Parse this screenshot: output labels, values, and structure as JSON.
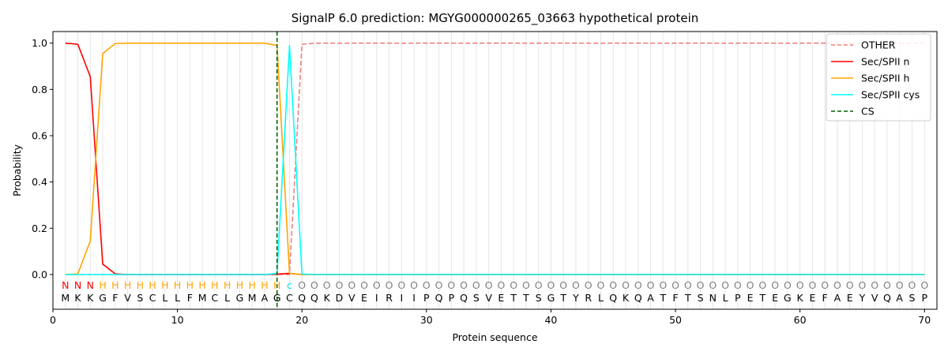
{
  "chart_data": {
    "type": "line",
    "title": "SignalP 6.0 prediction: MGYG000000265_03663 hypothetical protein",
    "xlabel": "Protein sequence",
    "ylabel": "Probability",
    "xlim": [
      0,
      71
    ],
    "ylim": [
      -0.15,
      1.05
    ],
    "x_ticks": [
      0,
      10,
      20,
      30,
      40,
      50,
      60,
      70
    ],
    "y_ticks": [
      0.0,
      0.2,
      0.4,
      0.6,
      0.8,
      1.0
    ],
    "x_tick_labels": [
      "0",
      "10",
      "20",
      "30",
      "40",
      "50",
      "60",
      "70"
    ],
    "y_tick_labels": [
      "0.0",
      "0.2",
      "0.4",
      "0.6",
      "0.8",
      "1.0"
    ],
    "grid": "vertical lines at each residue",
    "legend_position": "top-right",
    "sequence": [
      "M",
      "K",
      "K",
      "G",
      "F",
      "V",
      "S",
      "C",
      "L",
      "L",
      "F",
      "M",
      "C",
      "L",
      "G",
      "M",
      "A",
      "G",
      "C",
      "Q",
      "Q",
      "K",
      "D",
      "V",
      "E",
      "I",
      "R",
      "I",
      "I",
      "P",
      "Q",
      "P",
      "Q",
      "S",
      "V",
      "E",
      "T",
      "T",
      "S",
      "G",
      "T",
      "Y",
      "R",
      "L",
      "Q",
      "K",
      "Q",
      "A",
      "T",
      "F",
      "T",
      "S",
      "N",
      "L",
      "P",
      "E",
      "T",
      "E",
      "G",
      "K",
      "E",
      "F",
      "A",
      "E",
      "Y",
      "V",
      "Q",
      "A",
      "S",
      "P"
    ],
    "annotation": [
      "N",
      "N",
      "N",
      "H",
      "H",
      "H",
      "H",
      "H",
      "H",
      "H",
      "H",
      "H",
      "H",
      "H",
      "H",
      "H",
      "H",
      "H",
      "c",
      "O",
      "O",
      "O",
      "O",
      "O",
      "O",
      "O",
      "O",
      "O",
      "O",
      "O",
      "O",
      "O",
      "O",
      "O",
      "O",
      "O",
      "O",
      "O",
      "O",
      "O",
      "O",
      "O",
      "O",
      "O",
      "O",
      "O",
      "O",
      "O",
      "O",
      "O",
      "O",
      "O",
      "O",
      "O",
      "O",
      "O",
      "O",
      "O",
      "O",
      "O",
      "O",
      "O",
      "O",
      "O",
      "O",
      "O",
      "O",
      "O",
      "O",
      "O"
    ],
    "annotation_colors": {
      "N": "#ff0000",
      "H": "#ffa500",
      "c": "#00e5e5",
      "O": "#808080"
    },
    "series": [
      {
        "name": "OTHER",
        "color": "#f08080",
        "style": "dashed",
        "values": [
          0.0,
          0.0,
          0.0,
          0.0,
          0.0,
          0.0,
          0.0,
          0.0,
          0.0,
          0.0,
          0.0,
          0.0,
          0.0,
          0.0,
          0.0,
          0.0,
          0.0,
          0.0,
          0.0,
          0.995,
          1.0,
          1.0,
          1.0,
          1.0,
          1.0,
          1.0,
          1.0,
          1.0,
          1.0,
          1.0,
          1.0,
          1.0,
          1.0,
          1.0,
          1.0,
          1.0,
          1.0,
          1.0,
          1.0,
          1.0,
          1.0,
          1.0,
          1.0,
          1.0,
          1.0,
          1.0,
          1.0,
          1.0,
          1.0,
          1.0,
          1.0,
          1.0,
          1.0,
          1.0,
          1.0,
          1.0,
          1.0,
          1.0,
          1.0,
          1.0,
          1.0,
          1.0,
          1.0,
          1.0,
          1.0,
          1.0,
          1.0,
          1.0,
          1.0,
          1.0
        ]
      },
      {
        "name": "Sec/SPII n",
        "color": "#ff0000",
        "style": "solid",
        "values": [
          1.0,
          0.995,
          0.855,
          0.045,
          0.003,
          0.0,
          0.0,
          0.0,
          0.0,
          0.0,
          0.0,
          0.0,
          0.0,
          0.0,
          0.0,
          0.0,
          0.0,
          0.002,
          0.005,
          0.0,
          0.0,
          0.0,
          0.0,
          0.0,
          0.0,
          0.0,
          0.0,
          0.0,
          0.0,
          0.0,
          0.0,
          0.0,
          0.0,
          0.0,
          0.0,
          0.0,
          0.0,
          0.0,
          0.0,
          0.0,
          0.0,
          0.0,
          0.0,
          0.0,
          0.0,
          0.0,
          0.0,
          0.0,
          0.0,
          0.0,
          0.0,
          0.0,
          0.0,
          0.0,
          0.0,
          0.0,
          0.0,
          0.0,
          0.0,
          0.0,
          0.0,
          0.0,
          0.0,
          0.0,
          0.0,
          0.0,
          0.0,
          0.0,
          0.0,
          0.0
        ]
      },
      {
        "name": "Sec/SPII h",
        "color": "#ffa500",
        "style": "solid",
        "values": [
          0.0,
          0.003,
          0.145,
          0.955,
          0.998,
          1.0,
          1.0,
          1.0,
          1.0,
          1.0,
          1.0,
          1.0,
          1.0,
          1.0,
          1.0,
          1.0,
          1.0,
          0.99,
          0.005,
          0.0,
          0.0,
          0.0,
          0.0,
          0.0,
          0.0,
          0.0,
          0.0,
          0.0,
          0.0,
          0.0,
          0.0,
          0.0,
          0.0,
          0.0,
          0.0,
          0.0,
          0.0,
          0.0,
          0.0,
          0.0,
          0.0,
          0.0,
          0.0,
          0.0,
          0.0,
          0.0,
          0.0,
          0.0,
          0.0,
          0.0,
          0.0,
          0.0,
          0.0,
          0.0,
          0.0,
          0.0,
          0.0,
          0.0,
          0.0,
          0.0,
          0.0,
          0.0,
          0.0,
          0.0,
          0.0,
          0.0,
          0.0,
          0.0,
          0.0,
          0.0
        ]
      },
      {
        "name": "Sec/SPII cys",
        "color": "#00ffff",
        "style": "solid",
        "values": [
          0.0,
          0.0,
          0.0,
          0.0,
          0.0,
          0.0,
          0.0,
          0.0,
          0.0,
          0.0,
          0.0,
          0.0,
          0.0,
          0.0,
          0.0,
          0.0,
          0.0,
          0.005,
          0.99,
          0.002,
          0.0,
          0.0,
          0.0,
          0.0,
          0.0,
          0.0,
          0.0,
          0.0,
          0.0,
          0.0,
          0.0,
          0.0,
          0.0,
          0.0,
          0.0,
          0.0,
          0.0,
          0.0,
          0.0,
          0.0,
          0.0,
          0.0,
          0.0,
          0.0,
          0.0,
          0.0,
          0.0,
          0.0,
          0.0,
          0.0,
          0.0,
          0.0,
          0.0,
          0.0,
          0.0,
          0.0,
          0.0,
          0.0,
          0.0,
          0.0,
          0.0,
          0.0,
          0.0,
          0.0,
          0.0,
          0.0,
          0.0,
          0.0,
          0.0,
          0.0
        ]
      }
    ],
    "cleavage_site": {
      "name": "CS",
      "x": 18,
      "color": "#006400",
      "style": "dashed"
    }
  }
}
